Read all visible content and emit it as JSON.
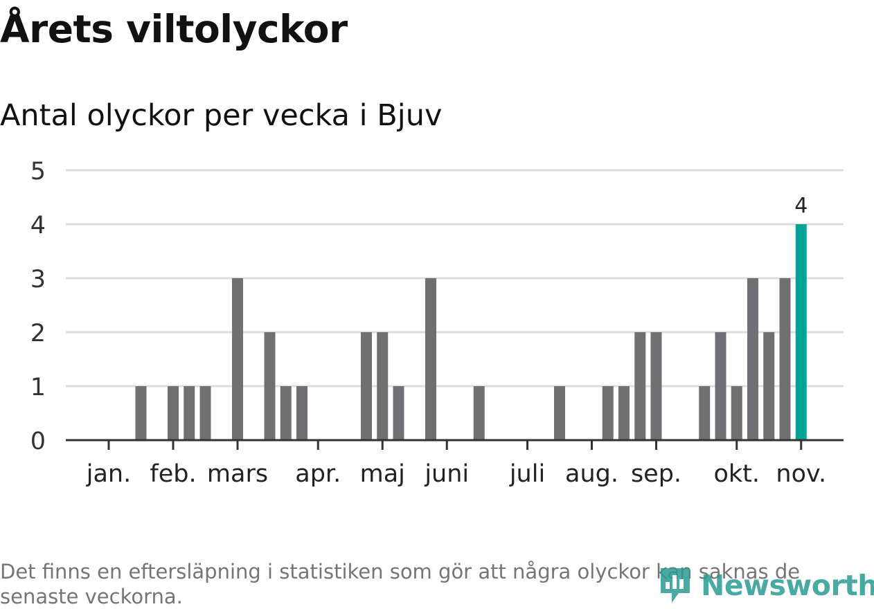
{
  "title": "Årets viltolyckor",
  "subtitle": "Antal olyckor per vecka i Bjuv",
  "footnote": "Det finns en eftersläpning i statistiken som gör att några olyckor kan saknas de senaste veckorna.",
  "brand": {
    "name": "Newsworthy",
    "icon": "bar-chart-logo-icon"
  },
  "colors": {
    "bar": "#6f6f74",
    "highlight": "#00a597",
    "grid": "#dddddd",
    "axis": "#333333",
    "brand": "#2a9c94"
  },
  "chart_data": {
    "type": "bar",
    "title": "Årets viltolyckor",
    "subtitle": "Antal olyckor per vecka i Bjuv",
    "xlabel": "",
    "ylabel": "",
    "ylim": [
      0,
      5
    ],
    "yticks": [
      0,
      1,
      2,
      3,
      4,
      5
    ],
    "grid": true,
    "weeks": [
      1,
      2,
      3,
      4,
      5,
      6,
      7,
      8,
      9,
      10,
      11,
      12,
      13,
      14,
      15,
      16,
      17,
      18,
      19,
      20,
      21,
      22,
      23,
      24,
      25,
      26,
      27,
      28,
      29,
      30,
      31,
      32,
      33,
      34,
      35,
      36,
      37,
      38,
      39,
      40,
      41,
      42,
      43,
      44,
      45
    ],
    "values": [
      0,
      0,
      1,
      0,
      1,
      1,
      1,
      0,
      3,
      0,
      2,
      1,
      1,
      0,
      0,
      0,
      2,
      2,
      1,
      0,
      3,
      0,
      0,
      1,
      0,
      0,
      0,
      0,
      1,
      0,
      0,
      1,
      1,
      2,
      2,
      0,
      0,
      1,
      2,
      1,
      3,
      2,
      3,
      4,
      0
    ],
    "month_ticks": [
      {
        "label": "jan.",
        "week": 1
      },
      {
        "label": "feb.",
        "week": 5
      },
      {
        "label": "mars",
        "week": 9
      },
      {
        "label": "apr.",
        "week": 14
      },
      {
        "label": "maj",
        "week": 18
      },
      {
        "label": "juni",
        "week": 22
      },
      {
        "label": "juli",
        "week": 27
      },
      {
        "label": "aug.",
        "week": 31
      },
      {
        "label": "sep.",
        "week": 35
      },
      {
        "label": "okt.",
        "week": 40
      },
      {
        "label": "nov.",
        "week": 44
      }
    ],
    "highlight": {
      "week": 44,
      "label": "4"
    }
  }
}
